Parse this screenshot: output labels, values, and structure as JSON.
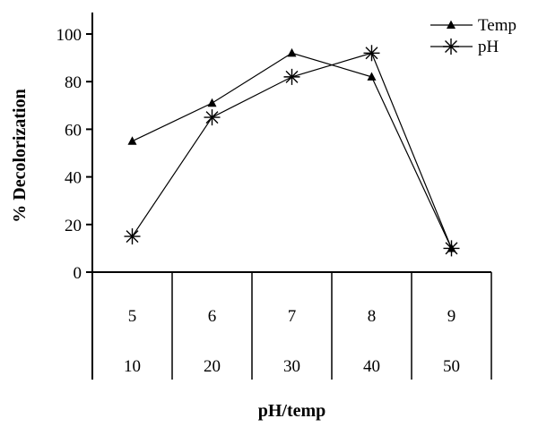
{
  "chart_data": {
    "type": "line",
    "xlabel": "pH/temp",
    "ylabel": "% Decolorization",
    "ylim": [
      0,
      100
    ],
    "yticks": [
      0,
      20,
      40,
      60,
      80,
      100
    ],
    "categories": [
      {
        "ph": "5",
        "temp": "10"
      },
      {
        "ph": "6",
        "temp": "20"
      },
      {
        "ph": "7",
        "temp": "30"
      },
      {
        "ph": "8",
        "temp": "40"
      },
      {
        "ph": "9",
        "temp": "50"
      }
    ],
    "series": [
      {
        "name": "Temp",
        "marker": "triangle",
        "values": [
          55,
          71,
          92,
          82,
          10
        ]
      },
      {
        "name": "pH",
        "marker": "asterisk",
        "values": [
          15,
          65,
          82,
          92,
          10
        ]
      }
    ],
    "legend_position": "top-right",
    "grid": false
  }
}
